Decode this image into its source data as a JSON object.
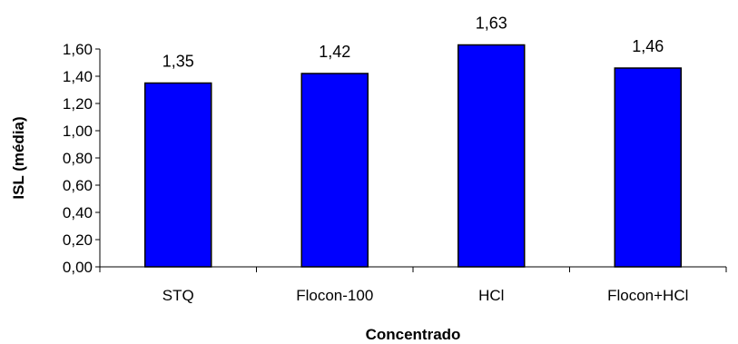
{
  "chart_data": {
    "type": "bar",
    "title": "",
    "xlabel": "Concentrado",
    "ylabel": "ISL (média)",
    "categories": [
      "STQ",
      "Flocon-100",
      "HCl",
      "Flocon+HCl"
    ],
    "values": [
      1.35,
      1.42,
      1.63,
      1.46
    ],
    "data_labels": [
      "1,35",
      "1,42",
      "1,63",
      "1,46"
    ],
    "ylim": [
      0,
      1.6
    ],
    "yticks": [
      0,
      0.2,
      0.4,
      0.6,
      0.8,
      1.0,
      1.2,
      1.4,
      1.6
    ],
    "ytick_labels": [
      "0,00",
      "0,20",
      "0,40",
      "0,60",
      "0,80",
      "1,00",
      "1,20",
      "1,40",
      "1,60"
    ],
    "grid": false,
    "legend": "none",
    "bar_color": "#0000FF"
  }
}
